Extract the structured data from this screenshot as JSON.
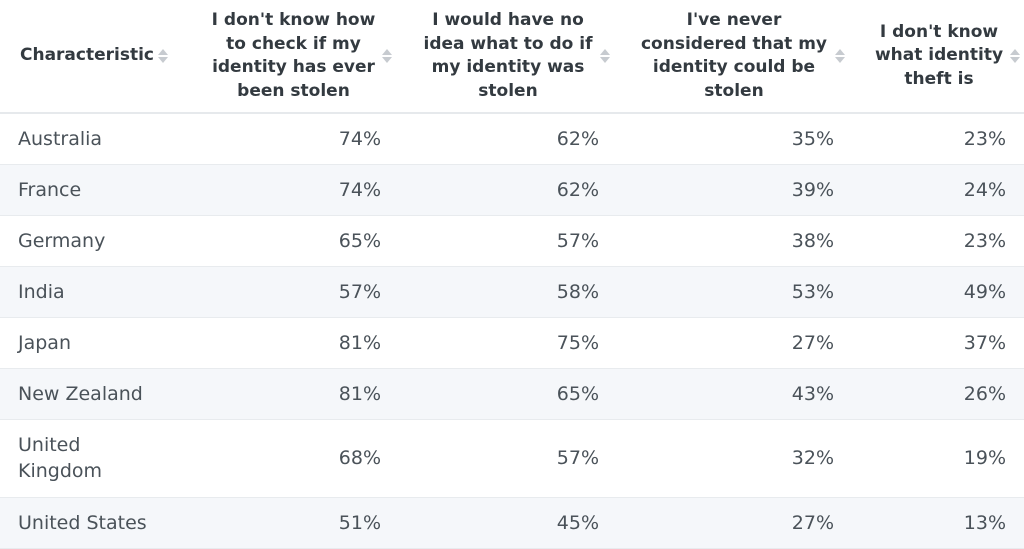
{
  "chart_data": {
    "type": "table",
    "columns": [
      "Characteristic",
      "I don't know how to check if my identity has ever been stolen",
      "I would have no idea what to do if my identity was stolen",
      "I've never considered that my identity could be stolen",
      "I don't know what identity theft is"
    ],
    "rows": [
      {
        "country": "Australia",
        "values": [
          "74%",
          "62%",
          "35%",
          "23%"
        ]
      },
      {
        "country": "France",
        "values": [
          "74%",
          "62%",
          "39%",
          "24%"
        ]
      },
      {
        "country": "Germany",
        "values": [
          "65%",
          "57%",
          "38%",
          "23%"
        ]
      },
      {
        "country": "India",
        "values": [
          "57%",
          "58%",
          "53%",
          "49%"
        ]
      },
      {
        "country": "Japan",
        "values": [
          "81%",
          "75%",
          "27%",
          "37%"
        ]
      },
      {
        "country": "New Zealand",
        "values": [
          "81%",
          "65%",
          "43%",
          "26%"
        ]
      },
      {
        "country": "United Kingdom",
        "values": [
          "68%",
          "57%",
          "32%",
          "19%"
        ]
      },
      {
        "country": "United States",
        "values": [
          "51%",
          "45%",
          "27%",
          "13%"
        ]
      }
    ]
  },
  "colors": {
    "header_text": "#333a40",
    "body_text": "#4a5259",
    "zebra": "#f5f7fa",
    "sort_icon": "#c7cbd0"
  },
  "icons": {
    "sort": "sort-arrows-icon"
  }
}
